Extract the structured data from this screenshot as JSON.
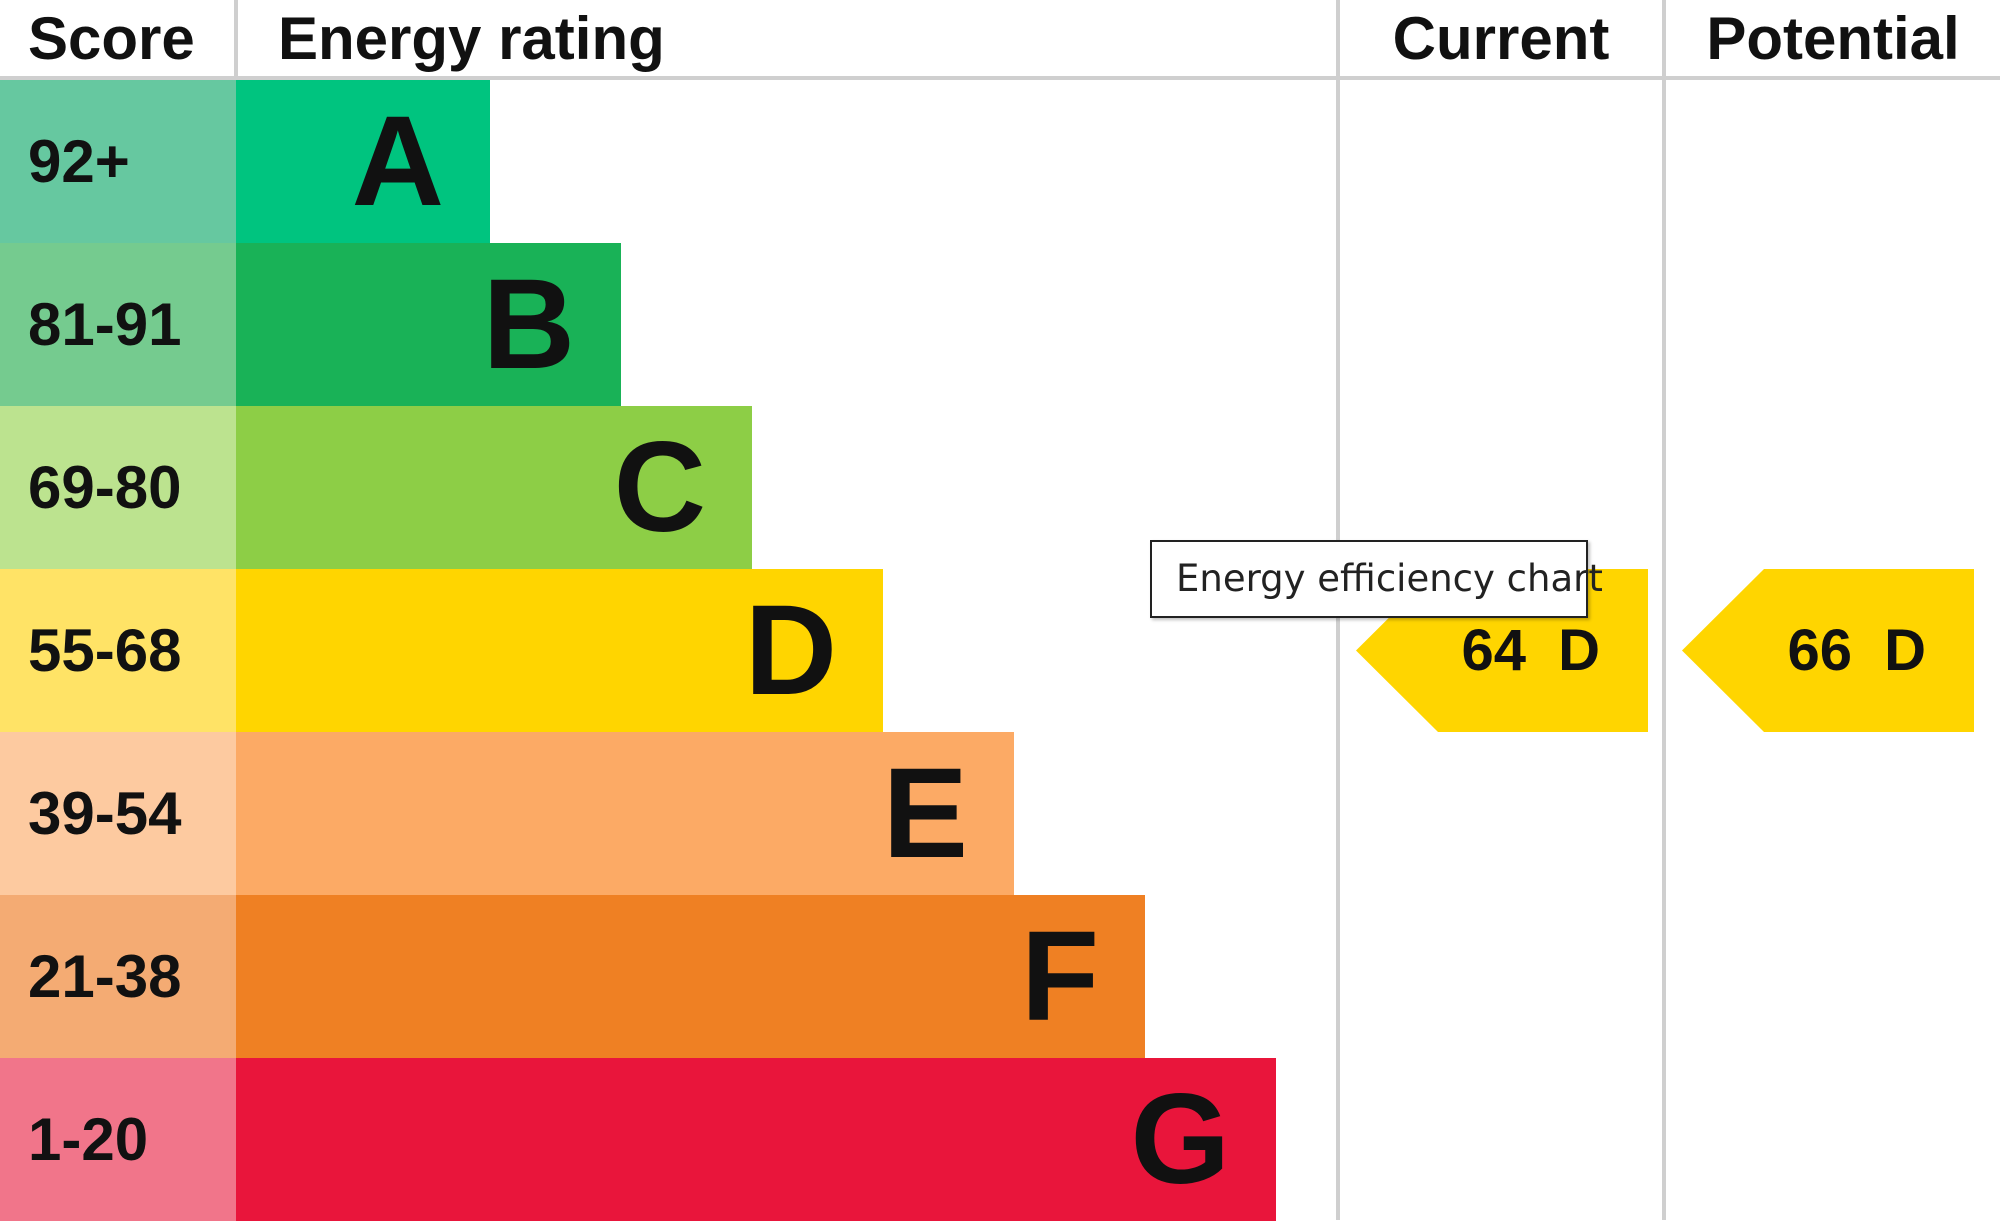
{
  "chart_data": {
    "type": "bar",
    "headers": {
      "score": "Score",
      "rating": "Energy rating",
      "current": "Current",
      "potential": "Potential"
    },
    "bands": [
      {
        "score": "92+",
        "letter": "A",
        "bar_color": "#00c47f",
        "score_color": "#66c8a0"
      },
      {
        "score": "81-91",
        "letter": "B",
        "bar_color": "#19b257",
        "score_color": "#75cb8f"
      },
      {
        "score": "69-80",
        "letter": "C",
        "bar_color": "#8dce46",
        "score_color": "#bce38f"
      },
      {
        "score": "55-68",
        "letter": "D",
        "bar_color": "#ffd500",
        "score_color": "#ffe366"
      },
      {
        "score": "39-54",
        "letter": "E",
        "bar_color": "#fcaa65",
        "score_color": "#fdcaa0"
      },
      {
        "score": "21-38",
        "letter": "F",
        "bar_color": "#ef8023",
        "score_color": "#f4ab73"
      },
      {
        "score": "1-20",
        "letter": "G",
        "bar_color": "#e9153b",
        "score_color": "#f1758a"
      }
    ],
    "current": {
      "value": 64,
      "rating": "D",
      "label": "64 D",
      "color": "#ffd500"
    },
    "potential": {
      "value": 66,
      "rating": "D",
      "label": "66 D",
      "color": "#ffd500"
    }
  },
  "tooltip": {
    "text": "Energy efficiency chart"
  }
}
